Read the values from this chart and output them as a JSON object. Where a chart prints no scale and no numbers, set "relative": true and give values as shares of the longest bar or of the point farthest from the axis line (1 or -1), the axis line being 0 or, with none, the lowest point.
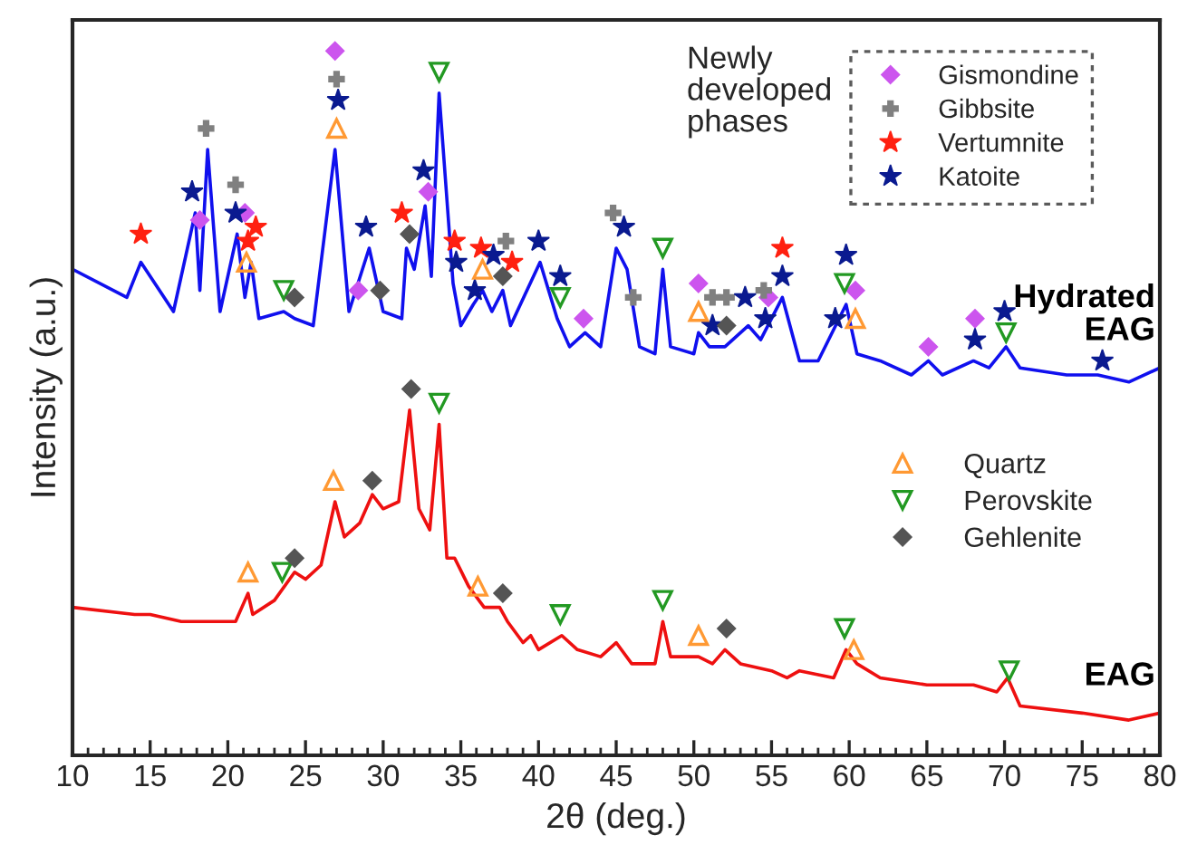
{
  "chart_data": {
    "type": "line",
    "relative": true,
    "xlabel": "2θ (deg.)",
    "ylabel": "Intensity (a.u.)",
    "legend_title": "Newly developed phases",
    "legend": "top right",
    "tick_labels": "x",
    "grid": false,
    "xlim": [
      10,
      80
    ],
    "xticks": [
      10,
      15,
      20,
      25,
      30,
      35,
      40,
      45,
      50,
      55,
      60,
      65,
      70,
      75,
      80
    ],
    "series": [
      {
        "name": "Hydrated EAG",
        "color": "#1010ee",
        "x": [
          10,
          13.5,
          14.4,
          16.5,
          17.9,
          18.2,
          18.7,
          19.5,
          20.6,
          21.1,
          21.5,
          22,
          23.6,
          24.3,
          25.5,
          26.9,
          27.8,
          29.1,
          30,
          31.2,
          31.5,
          32,
          32.7,
          33.1,
          33.6,
          34.5,
          35,
          35.8,
          36.4,
          37,
          37.7,
          38.2,
          40.1,
          41.2,
          42,
          43,
          44,
          45,
          45.7,
          46.5,
          47.5,
          48,
          48.5,
          50,
          50.3,
          51,
          52,
          53.5,
          54.3,
          55.7,
          56.8,
          58,
          59.8,
          60.5,
          62,
          64,
          65.1,
          66,
          68,
          69,
          70.1,
          71,
          74,
          76,
          78,
          80
        ],
        "values": [
          0.69,
          0.65,
          0.7,
          0.63,
          0.77,
          0.66,
          0.86,
          0.63,
          0.74,
          0.65,
          0.7,
          0.62,
          0.63,
          0.62,
          0.61,
          0.86,
          0.63,
          0.72,
          0.63,
          0.62,
          0.72,
          0.69,
          0.78,
          0.68,
          0.94,
          0.67,
          0.61,
          0.64,
          0.66,
          0.63,
          0.66,
          0.61,
          0.7,
          0.62,
          0.58,
          0.6,
          0.58,
          0.72,
          0.69,
          0.58,
          0.57,
          0.69,
          0.58,
          0.57,
          0.6,
          0.58,
          0.58,
          0.61,
          0.59,
          0.65,
          0.56,
          0.56,
          0.64,
          0.57,
          0.56,
          0.54,
          0.56,
          0.54,
          0.56,
          0.55,
          0.58,
          0.55,
          0.54,
          0.54,
          0.53,
          0.55
        ]
      },
      {
        "name": "EAG",
        "color": "#ee1010",
        "x": [
          10,
          14,
          15,
          17,
          19,
          20.5,
          21.3,
          21.6,
          23,
          24.3,
          25,
          26,
          26.9,
          27.5,
          28.5,
          29.3,
          30,
          31,
          31.7,
          32.3,
          33,
          33.6,
          34.1,
          34.6,
          35.5,
          36.5,
          37.5,
          38,
          39,
          39.5,
          40,
          41.5,
          42.5,
          44,
          45,
          46,
          47.5,
          48,
          48.5,
          50.3,
          51.2,
          52,
          53,
          55,
          56,
          56.8,
          59,
          59.8,
          60.5,
          62,
          65,
          68,
          69.5,
          70.2,
          71,
          75,
          78,
          80
        ],
        "values": [
          0.21,
          0.2,
          0.2,
          0.19,
          0.19,
          0.19,
          0.23,
          0.2,
          0.22,
          0.26,
          0.25,
          0.27,
          0.36,
          0.31,
          0.33,
          0.37,
          0.35,
          0.36,
          0.49,
          0.35,
          0.32,
          0.47,
          0.28,
          0.28,
          0.24,
          0.21,
          0.21,
          0.19,
          0.16,
          0.17,
          0.15,
          0.17,
          0.15,
          0.14,
          0.16,
          0.13,
          0.13,
          0.19,
          0.14,
          0.14,
          0.13,
          0.15,
          0.13,
          0.12,
          0.11,
          0.12,
          0.11,
          0.15,
          0.13,
          0.11,
          0.1,
          0.1,
          0.09,
          0.11,
          0.07,
          0.06,
          0.05,
          0.06
        ]
      },
      {
        "name": "Gismondine",
        "type": "scatter",
        "marker": "diamond",
        "color": "#cc55ee",
        "x": [
          26.9,
          18.2,
          21.1,
          28.4,
          32.9,
          42.9,
          50.3,
          54.8,
          60.4,
          65.1,
          68.1
        ],
        "values": [
          1.0,
          0.76,
          0.77,
          0.66,
          0.8,
          0.62,
          0.67,
          0.65,
          0.66,
          0.58,
          0.62
        ]
      },
      {
        "name": "Gibbsite",
        "type": "scatter",
        "marker": "cross",
        "color": "#808080",
        "x": [
          18.6,
          20.5,
          27.0,
          37.9,
          44.8,
          46.1,
          51.2,
          52.1,
          54.5
        ],
        "values": [
          0.89,
          0.81,
          0.96,
          0.73,
          0.77,
          0.65,
          0.65,
          0.65,
          0.66
        ]
      },
      {
        "name": "Vertumnite",
        "type": "scatter",
        "marker": "star",
        "color": "#ff2010",
        "x": [
          14.4,
          21.8,
          21.3,
          31.2,
          34.6,
          36.3,
          38.3,
          55.7
        ],
        "values": [
          0.74,
          0.75,
          0.73,
          0.77,
          0.73,
          0.72,
          0.7,
          0.72
        ]
      },
      {
        "name": "Katoite",
        "type": "scatter",
        "marker": "star",
        "color": "#0a1a90",
        "x": [
          17.7,
          20.5,
          27.1,
          28.9,
          32.6,
          34.7,
          35.9,
          37.1,
          40.0,
          41.4,
          45.5,
          51.2,
          53.3,
          54.6,
          55.7,
          59.1,
          59.8,
          68.1,
          70.0,
          76.3
        ],
        "values": [
          0.8,
          0.77,
          0.93,
          0.75,
          0.83,
          0.7,
          0.66,
          0.71,
          0.73,
          0.68,
          0.75,
          0.61,
          0.65,
          0.62,
          0.68,
          0.62,
          0.71,
          0.59,
          0.63,
          0.56
        ]
      },
      {
        "name": "Quartz",
        "type": "scatter",
        "marker": "triangle",
        "color": "#ff9933",
        "x": [
          21.2,
          27.0,
          36.4,
          50.3,
          60.4,
          21.3,
          26.8,
          36.1,
          50.3,
          60.3
        ],
        "values": [
          0.7,
          0.89,
          0.69,
          0.63,
          0.62,
          0.26,
          0.39,
          0.24,
          0.17,
          0.15
        ]
      },
      {
        "name": "Perovskite",
        "type": "scatter",
        "marker": "triangle_down",
        "color": "#229922",
        "x": [
          23.6,
          33.6,
          41.4,
          48.0,
          59.7,
          70.1,
          23.5,
          33.6,
          41.4,
          48.0,
          59.7,
          70.3
        ],
        "values": [
          0.66,
          0.97,
          0.65,
          0.72,
          0.67,
          0.6,
          0.26,
          0.5,
          0.2,
          0.22,
          0.18,
          0.12
        ]
      },
      {
        "name": "Gehlenite",
        "type": "scatter",
        "marker": "diamond",
        "color": "#555555",
        "x": [
          24.3,
          29.8,
          31.7,
          37.7,
          52.1,
          24.3,
          29.3,
          31.8,
          37.7,
          52.1
        ],
        "values": [
          0.65,
          0.66,
          0.74,
          0.68,
          0.61,
          0.28,
          0.39,
          0.52,
          0.23,
          0.18
        ]
      }
    ]
  }
}
